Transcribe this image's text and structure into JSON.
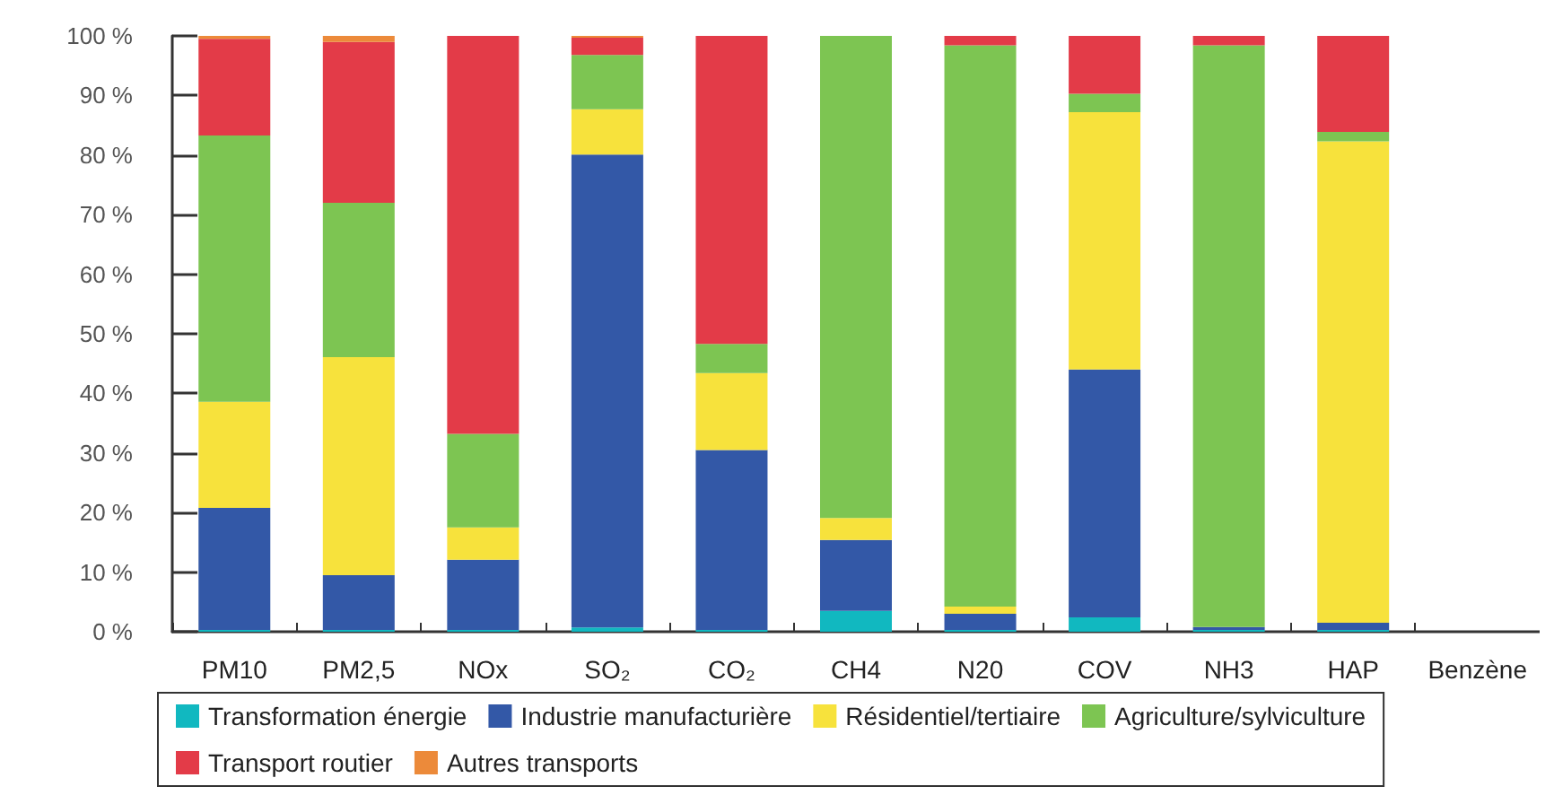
{
  "chart_data": {
    "type": "bar",
    "stacked": true,
    "categories": [
      "PM10",
      "PM2,5",
      "NOx",
      "SO₂",
      "CO₂",
      "CH4",
      "N20",
      "COV",
      "NH3",
      "HAP",
      "Benzène"
    ],
    "series": [
      {
        "name": "Transformation énergie",
        "color": "#11b8c0",
        "values": [
          0.3,
          0.3,
          0.3,
          0.7,
          0.3,
          3.5,
          0.3,
          2.4,
          0.3,
          0.3,
          null
        ]
      },
      {
        "name": "Industrie manufacturière",
        "color": "#3358a7",
        "values": [
          20.5,
          9.2,
          11.8,
          79.4,
          30.2,
          11.9,
          2.7,
          41.6,
          0.5,
          1.2,
          null
        ]
      },
      {
        "name": "Résidentiel/tertiaire",
        "color": "#f7e23c",
        "values": [
          17.8,
          36.6,
          5.4,
          7.6,
          12.9,
          3.7,
          1.2,
          43.2,
          0,
          80.8,
          null
        ]
      },
      {
        "name": "Agriculture/sylviculture",
        "color": "#7dc552",
        "values": [
          44.7,
          25.9,
          15.7,
          9.1,
          4.9,
          80.9,
          94.2,
          3.1,
          97.6,
          1.6,
          null
        ]
      },
      {
        "name": "Transport routier",
        "color": "#e33b48",
        "values": [
          16.2,
          27,
          66.8,
          2.9,
          51.7,
          0,
          1.6,
          9.7,
          1.6,
          16.1,
          null
        ]
      },
      {
        "name": "Autres transports",
        "color": "#ec8a3a",
        "values": [
          0.5,
          1,
          0,
          0.3,
          0,
          0,
          0,
          0,
          0,
          0,
          null
        ]
      }
    ],
    "ylim": [
      0,
      100
    ],
    "yticks": [
      {
        "value": 0,
        "label": "0 %"
      },
      {
        "value": 10,
        "label": "10 %"
      },
      {
        "value": 20,
        "label": "20 %"
      },
      {
        "value": 30,
        "label": "30 %"
      },
      {
        "value": 40,
        "label": "40 %"
      },
      {
        "value": 50,
        "label": "50 %"
      },
      {
        "value": 60,
        "label": "60 %"
      },
      {
        "value": 70,
        "label": "70 %"
      },
      {
        "value": 80,
        "label": "80 %"
      },
      {
        "value": 90,
        "label": "90 %"
      },
      {
        "value": 100,
        "label": "100 %"
      }
    ],
    "grid": false,
    "legend": "bottom"
  }
}
